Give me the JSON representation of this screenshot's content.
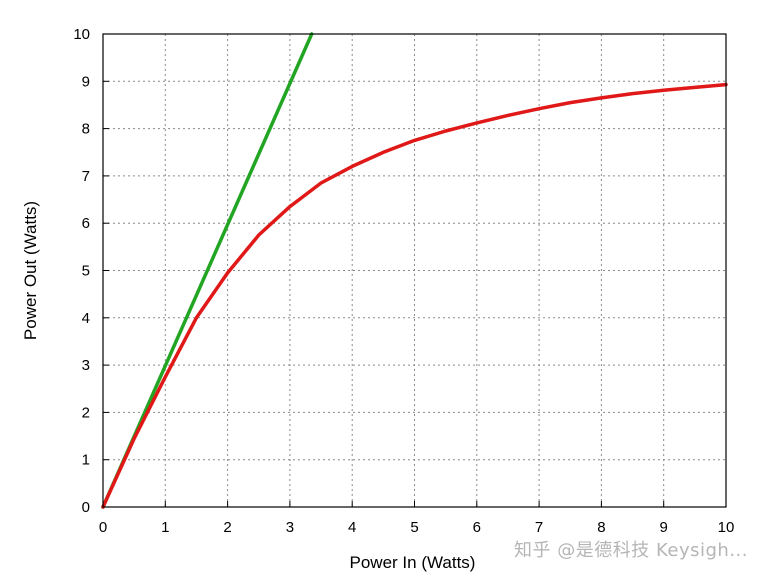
{
  "chart_data": {
    "type": "line",
    "title": "",
    "xlabel": "Power In (Watts)",
    "ylabel": "Power Out (Watts)",
    "xlim": [
      0,
      10
    ],
    "ylim": [
      0,
      10
    ],
    "xticks": [
      "0",
      "1",
      "2",
      "3",
      "4",
      "5",
      "6",
      "7",
      "8",
      "9",
      "10"
    ],
    "yticks": [
      "0",
      "1",
      "2",
      "3",
      "4",
      "5",
      "6",
      "7",
      "8",
      "9",
      "10"
    ],
    "grid": true,
    "series": [
      {
        "color": "#22a522",
        "x": [
          0,
          3.35
        ],
        "y": [
          0,
          10
        ]
      },
      {
        "color": "#e01818",
        "x": [
          0,
          0.5,
          1,
          1.5,
          2,
          2.5,
          3,
          3.5,
          4,
          4.5,
          5,
          5.5,
          6,
          6.5,
          7,
          7.5,
          8,
          8.5,
          9,
          9.5,
          10
        ],
        "y": [
          0,
          1.45,
          2.75,
          4.0,
          4.95,
          5.75,
          6.35,
          6.85,
          7.2,
          7.5,
          7.75,
          7.95,
          8.12,
          8.28,
          8.42,
          8.55,
          8.65,
          8.74,
          8.81,
          8.87,
          8.93
        ]
      }
    ]
  },
  "watermark": "知乎 @是德科技 Keysigh..."
}
